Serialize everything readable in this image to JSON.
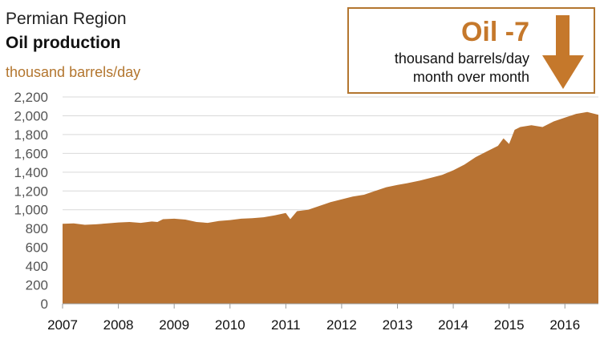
{
  "header": {
    "title": "Permian Region",
    "subtitle": "Oil production",
    "unit": "thousand barrels/day"
  },
  "callout": {
    "value": "Oil -7",
    "line1": "thousand barrels/day",
    "line2": "month over month",
    "arrow_icon": "down-arrow-icon",
    "accent": "#c5782b"
  },
  "colors": {
    "area": "#b87333",
    "grid": "#d9d9d9",
    "accent": "#b3762f"
  },
  "chart_data": {
    "type": "area",
    "title": "Permian Region",
    "subtitle": "Oil production",
    "ylabel": "thousand barrels/day",
    "xlabel": "",
    "ylim": [
      0,
      2200
    ],
    "xlim": [
      2007.0,
      2016.6
    ],
    "yticks": [
      "0",
      "200",
      "400",
      "600",
      "800",
      "1,000",
      "1,200",
      "1,400",
      "1,600",
      "1,800",
      "2,000",
      "2,200"
    ],
    "xticks": [
      "2007",
      "2008",
      "2009",
      "2010",
      "2011",
      "2012",
      "2013",
      "2014",
      "2015",
      "2016"
    ],
    "grid": true,
    "series": [
      {
        "x": [
          2007.0,
          2007.2,
          2007.4,
          2007.6,
          2007.8,
          2008.0,
          2008.2,
          2008.4,
          2008.6,
          2008.7,
          2008.8,
          2009.0,
          2009.2,
          2009.4,
          2009.6,
          2009.8,
          2010.0,
          2010.2,
          2010.4,
          2010.6,
          2010.8,
          2011.0,
          2011.08,
          2011.2,
          2011.4,
          2011.6,
          2011.8,
          2012.0,
          2012.2,
          2012.4,
          2012.6,
          2012.8,
          2013.0,
          2013.2,
          2013.4,
          2013.6,
          2013.8,
          2014.0,
          2014.2,
          2014.4,
          2014.6,
          2014.8,
          2014.9,
          2015.0,
          2015.1,
          2015.2,
          2015.4,
          2015.6,
          2015.8,
          2016.0,
          2016.2,
          2016.4,
          2016.6
        ],
        "values": [
          850,
          855,
          840,
          845,
          855,
          865,
          870,
          860,
          875,
          870,
          900,
          905,
          895,
          870,
          860,
          880,
          890,
          905,
          910,
          920,
          940,
          965,
          900,
          985,
          1000,
          1040,
          1080,
          1110,
          1140,
          1160,
          1200,
          1240,
          1265,
          1285,
          1310,
          1340,
          1370,
          1420,
          1480,
          1560,
          1620,
          1680,
          1760,
          1700,
          1850,
          1880,
          1900,
          1880,
          1940,
          1980,
          2020,
          2040,
          2010
        ]
      }
    ]
  }
}
